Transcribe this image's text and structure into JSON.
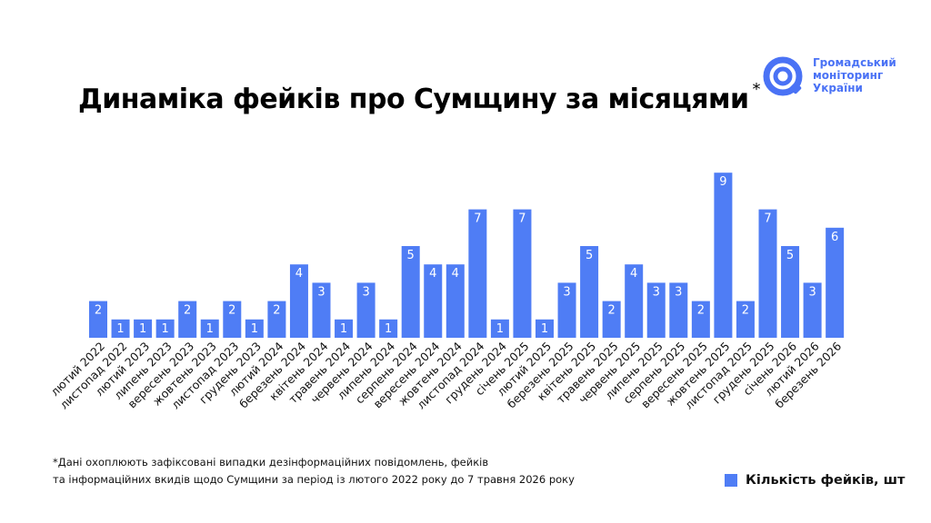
{
  "title": "Динаміка фейків про Сумщину за місяцями",
  "title_mark": "*",
  "logo": {
    "icon": "magnifier-ring-icon",
    "lines": [
      "Громадський",
      "моніторинг",
      "України"
    ],
    "color": "#4a72f5"
  },
  "footnote": {
    "line1": "*Дані охоплюють зафіксовані випадки дезінформаційних повідомлень, фейків",
    "line2": "та інформаційних вкидів щодо Сумщини за період із лютого 2022 року до 7 травня 2026 року"
  },
  "legend": {
    "label": "Кількість фейків, шт",
    "color": "#4f7df5"
  },
  "chart_data": {
    "type": "bar",
    "title": "Динаміка фейків про Сумщину за місяцями",
    "xlabel": "",
    "ylabel": "",
    "grid": false,
    "legend_position": "bottom-right",
    "bar_color": "#4f7df5",
    "label_color": "#ffffff",
    "ylim": [
      0,
      9
    ],
    "categories": [
      "лютий 2022",
      "листопад 2022",
      "лютий 2023",
      "липень 2023",
      "вересень 2023",
      "жовтень 2023",
      "листопад 2023",
      "грудень 2023",
      "лютий 2024",
      "березень 2024",
      "квітень 2024",
      "травень 2024",
      "червень 2024",
      "липень 2024",
      "серпень 2024",
      "вересень 2024",
      "жовтень 2024",
      "листопад 2024",
      "грудень 2024",
      "січень 2025",
      "лютий 2025",
      "березень 2025",
      "квітень 2025",
      "травень 2025",
      "червень 2025",
      "липень 2025",
      "серпень 2025",
      "вересень 2025",
      "жовтень 2025",
      "листопад 2025",
      "грудень 2025",
      "січень 2026",
      "лютий 2026",
      "березень 2026"
    ],
    "series": [
      {
        "name": "Кількість фейків, шт",
        "values": [
          2,
          1,
          1,
          1,
          2,
          1,
          2,
          1,
          2,
          4,
          3,
          1,
          3,
          1,
          5,
          4,
          4,
          7,
          1,
          7,
          1,
          3,
          5,
          2,
          4,
          3,
          3,
          2,
          9,
          2,
          7,
          5,
          3,
          6
        ]
      }
    ]
  }
}
